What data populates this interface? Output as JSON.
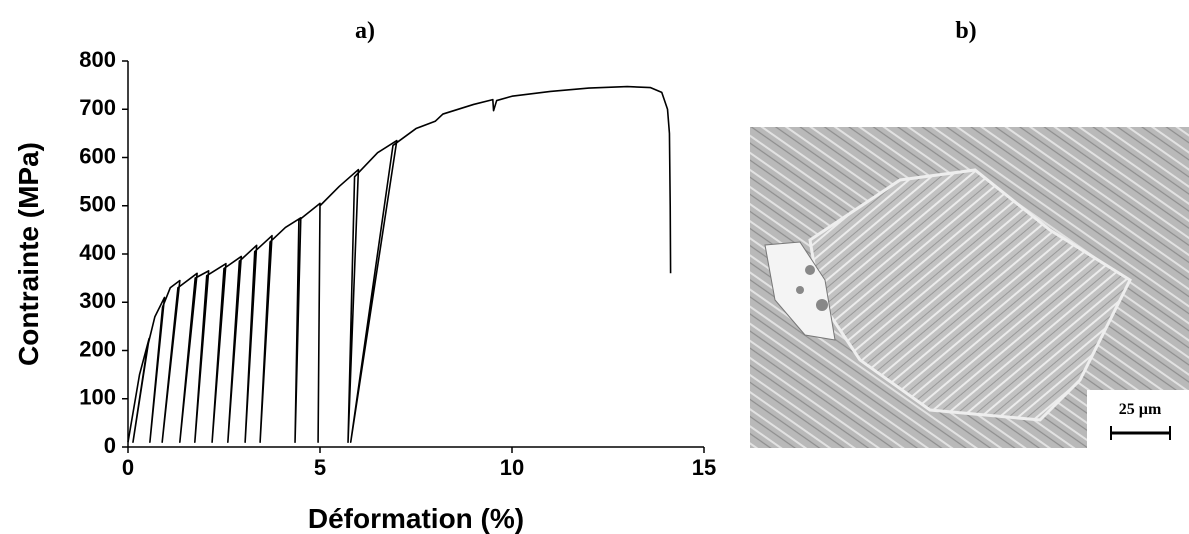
{
  "chart_data": {
    "type": "line",
    "title": "a)",
    "x_label": "Déformation (%)",
    "y_label": "Contrainte (MPa)",
    "x": [
      0,
      0.3,
      0.55,
      0.13,
      0.5,
      0.7,
      0.95,
      0.57,
      0.9,
      1.1,
      1.35,
      0.89,
      1.3,
      1.8,
      1.35,
      1.75,
      2.1,
      1.74,
      2.05,
      2.55,
      2.19,
      2.5,
      2.95,
      2.6,
      2.9,
      3.35,
      3.05,
      3.3,
      3.75,
      3.44,
      3.7,
      4.1,
      4.5,
      4.35,
      4.45,
      5.0,
      4.95,
      5.0,
      5.5,
      6.0,
      5.73,
      5.9,
      6.5,
      7.0,
      5.8,
      6.9,
      7.5,
      8.0,
      8.2,
      9.0,
      9.5,
      9.52,
      9.6,
      10,
      11,
      12,
      13,
      13.6,
      13.9,
      14.05,
      14.1,
      14.12,
      14.13
    ],
    "series": [
      {
        "color": "#000000",
        "values": [
          10,
          150,
          225,
          10,
          205,
          270,
          310,
          10,
          290,
          330,
          345,
          10,
          330,
          360,
          10,
          350,
          365,
          10,
          355,
          380,
          10,
          370,
          395,
          10,
          385,
          418,
          10,
          405,
          438,
          10,
          425,
          455,
          475,
          10,
          470,
          505,
          10,
          500,
          540,
          575,
          10,
          560,
          610,
          635,
          10,
          625,
          660,
          675,
          690,
          710,
          720,
          697,
          718,
          727,
          737,
          744,
          747,
          745,
          735,
          700,
          650,
          500,
          360
        ]
      }
    ],
    "xlim": [
      0,
      15
    ],
    "xticks": [
      0,
      5,
      10,
      15
    ],
    "ylim": [
      0,
      800
    ],
    "yticks": [
      0,
      100,
      200,
      300,
      400,
      500,
      600,
      700,
      800
    ],
    "grid": false
  },
  "micrograph": {
    "label": "b)",
    "scale_bar": "25 µm"
  }
}
